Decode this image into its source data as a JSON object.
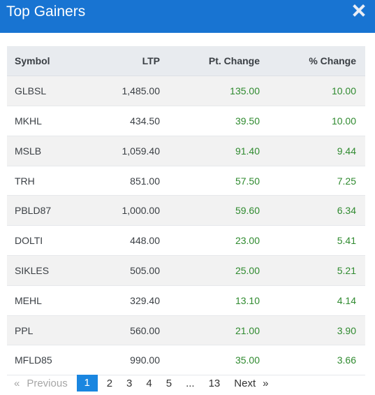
{
  "header": {
    "title": "Top Gainers",
    "close_icon": "close-icon"
  },
  "table": {
    "columns": [
      "Symbol",
      "LTP",
      "Pt. Change",
      "% Change"
    ],
    "rows": [
      {
        "symbol": "GLBSL",
        "ltp": "1,485.00",
        "pt_change": "135.00",
        "pct_change": "10.00"
      },
      {
        "symbol": "MKHL",
        "ltp": "434.50",
        "pt_change": "39.50",
        "pct_change": "10.00"
      },
      {
        "symbol": "MSLB",
        "ltp": "1,059.40",
        "pt_change": "91.40",
        "pct_change": "9.44"
      },
      {
        "symbol": "TRH",
        "ltp": "851.00",
        "pt_change": "57.50",
        "pct_change": "7.25"
      },
      {
        "symbol": "PBLD87",
        "ltp": "1,000.00",
        "pt_change": "59.60",
        "pct_change": "6.34"
      },
      {
        "symbol": "DOLTI",
        "ltp": "448.00",
        "pt_change": "23.00",
        "pct_change": "5.41"
      },
      {
        "symbol": "SIKLES",
        "ltp": "505.00",
        "pt_change": "25.00",
        "pct_change": "5.21"
      },
      {
        "symbol": "MEHL",
        "ltp": "329.40",
        "pt_change": "13.10",
        "pct_change": "4.14"
      },
      {
        "symbol": "PPL",
        "ltp": "560.00",
        "pt_change": "21.00",
        "pct_change": "3.90"
      },
      {
        "symbol": "MFLD85",
        "ltp": "990.00",
        "pt_change": "35.00",
        "pct_change": "3.66"
      }
    ]
  },
  "pagination": {
    "prev_arrow": "«",
    "prev_label": "Previous",
    "pages": [
      "1",
      "2",
      "3",
      "4",
      "5"
    ],
    "ellipsis": "...",
    "last_page": "13",
    "next_label": "Next",
    "next_arrow": "»",
    "active_page": "1"
  },
  "colors": {
    "header_bg": "#1874d2",
    "positive": "#2f8a2f",
    "active_page_bg": "#1a86e0"
  }
}
